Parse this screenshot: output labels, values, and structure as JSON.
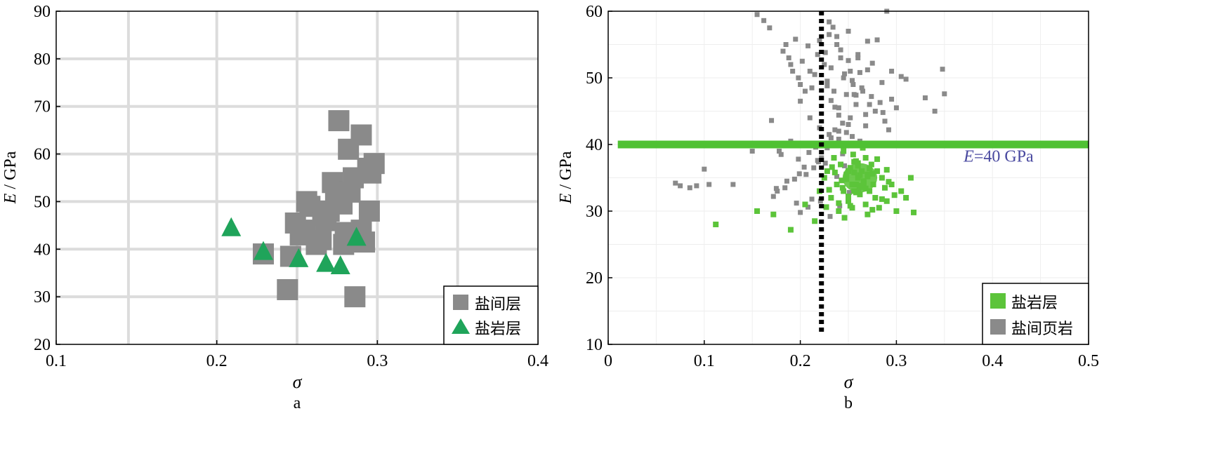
{
  "colors": {
    "gray_marker": "#8a8a8a",
    "green_triangle": "#1fa45a",
    "green_square": "#5cc43a",
    "green_line": "#4fc133",
    "gridline_a": "#dcdcdc",
    "gridline_b": "#eeeeee",
    "annotation": "#4a4aa0",
    "axis": "#000000"
  },
  "chart_data": [
    {
      "type": "scatter",
      "panel_label": "a",
      "xlabel": "σ",
      "ylabel_italic": "E",
      "ylabel_rest": " / GPa",
      "xlim": [
        0.1,
        0.4
      ],
      "ylim": [
        20,
        90
      ],
      "xticks": [
        0.1,
        0.2,
        0.3,
        0.4
      ],
      "xtick_labels": [
        "0.1",
        "0.2",
        "0.3",
        "0.4"
      ],
      "yticks": [
        20,
        30,
        40,
        50,
        60,
        70,
        80,
        90
      ],
      "ytick_labels": [
        "20",
        "30",
        "40",
        "50",
        "60",
        "70",
        "80",
        "90"
      ],
      "grid_x": [
        0.145,
        0.2,
        0.25,
        0.3,
        0.35
      ],
      "grid": true,
      "legend_position": "bottom-right",
      "series": [
        {
          "name": "盐间层",
          "marker": "square",
          "color": "#8a8a8a",
          "x": [
            0.229,
            0.244,
            0.246,
            0.249,
            0.252,
            0.255,
            0.258,
            0.262,
            0.265,
            0.268,
            0.27,
            0.272,
            0.274,
            0.276,
            0.278,
            0.28,
            0.282,
            0.285,
            0.288,
            0.29,
            0.292,
            0.294,
            0.295,
            0.296,
            0.298,
            0.286,
            0.283,
            0.275,
            0.266,
            0.256,
            0.29,
            0.279
          ],
          "y": [
            39,
            31.5,
            38.5,
            45.5,
            43,
            44,
            49,
            41,
            42,
            46,
            48,
            54,
            52,
            67,
            49.5,
            43.5,
            61,
            55,
            42,
            64,
            41.5,
            57,
            48,
            56,
            58,
            30,
            52,
            50,
            47,
            50,
            44,
            41
          ]
        },
        {
          "name": "盐岩层",
          "marker": "triangle",
          "color": "#1fa45a",
          "x": [
            0.209,
            0.229,
            0.251,
            0.268,
            0.277,
            0.287
          ],
          "y": [
            44.5,
            39.5,
            38,
            37,
            36.5,
            42.5
          ]
        }
      ]
    },
    {
      "type": "scatter",
      "panel_label": "b",
      "xlabel": "σ",
      "ylabel_italic": "E",
      "ylabel_rest": " / GPa",
      "xlim": [
        0,
        0.5
      ],
      "ylim": [
        10,
        60
      ],
      "xticks": [
        0,
        0.1,
        0.2,
        0.3,
        0.4,
        0.5
      ],
      "xtick_labels": [
        "0",
        "0.1",
        "0.2",
        "0.3",
        "0.4",
        "0.5"
      ],
      "yticks": [
        10,
        20,
        30,
        40,
        50,
        60
      ],
      "ytick_labels": [
        "10",
        "20",
        "30",
        "40",
        "50",
        "60"
      ],
      "grid": true,
      "legend_position": "bottom-right",
      "annotations": {
        "hline_y": 40,
        "hline_x_start": 0.01,
        "hline_label_italic": "E",
        "hline_label_rest": "=40 GPa",
        "hline_label_x": 0.37,
        "hline_label_y": 37.4,
        "vline_x": 0.222,
        "vline_y_range": [
          11.5,
          60
        ]
      },
      "series": [
        {
          "name": "盐岩层",
          "marker": "square",
          "color": "#5cc43a",
          "x": [
            0.112,
            0.155,
            0.172,
            0.19,
            0.205,
            0.215,
            0.22,
            0.225,
            0.228,
            0.232,
            0.235,
            0.238,
            0.24,
            0.242,
            0.244,
            0.246,
            0.248,
            0.25,
            0.252,
            0.254,
            0.256,
            0.258,
            0.26,
            0.262,
            0.264,
            0.266,
            0.268,
            0.27,
            0.272,
            0.274,
            0.276,
            0.278,
            0.28,
            0.282,
            0.285,
            0.288,
            0.29,
            0.295,
            0.3,
            0.305,
            0.31,
            0.315,
            0.318,
            0.245,
            0.255,
            0.265,
            0.25,
            0.26,
            0.27,
            0.262,
            0.258,
            0.268,
            0.252,
            0.275,
            0.24,
            0.236,
            0.23,
            0.28,
            0.285,
            0.29,
            0.248,
            0.256,
            0.266,
            0.26,
            0.254,
            0.27,
            0.264,
            0.275,
            0.243,
            0.233,
            0.227,
            0.292,
            0.298,
            0.245,
            0.258,
            0.272,
            0.262,
            0.268,
            0.25,
            0.256
          ],
          "y": [
            28,
            30,
            29.5,
            27.2,
            31,
            28.5,
            33,
            35,
            36,
            32,
            38,
            34,
            30,
            37,
            33.5,
            29,
            35.5,
            31.5,
            36.5,
            34,
            33,
            37.5,
            35,
            32.5,
            36,
            34.5,
            31,
            35.5,
            33,
            37,
            34,
            32,
            36,
            30.5,
            35,
            33.5,
            31.5,
            34,
            30,
            33,
            32,
            35,
            29.8,
            39,
            38.5,
            39.5,
            36,
            36.8,
            35.2,
            33.8,
            32.8,
            38,
            30.8,
            30.2,
            31.2,
            35.8,
            33.2,
            37.8,
            31.8,
            36.2,
            34.8,
            35.8,
            34.2,
            37.2,
            30.5,
            29.5,
            33.6,
            35.6,
            34.6,
            36.6,
            30.6,
            34.4,
            32.4,
            33,
            34,
            36.4,
            35.4,
            33.4,
            32.2,
            37.4
          ],
          "cluster": {
            "center_x": 0.262,
            "center_y": 35,
            "radius_x": 0.018,
            "radius_y": 2.2
          }
        },
        {
          "name": "盐间页岩",
          "marker": "square",
          "color": "#8a8a8a",
          "x": [
            0.07,
            0.075,
            0.085,
            0.092,
            0.1,
            0.105,
            0.13,
            0.15,
            0.155,
            0.162,
            0.168,
            0.17,
            0.175,
            0.178,
            0.182,
            0.185,
            0.188,
            0.19,
            0.192,
            0.195,
            0.198,
            0.2,
            0.202,
            0.205,
            0.208,
            0.21,
            0.212,
            0.215,
            0.218,
            0.22,
            0.222,
            0.225,
            0.228,
            0.23,
            0.232,
            0.235,
            0.238,
            0.24,
            0.242,
            0.245,
            0.248,
            0.25,
            0.252,
            0.255,
            0.258,
            0.26,
            0.262,
            0.265,
            0.268,
            0.27,
            0.275,
            0.28,
            0.285,
            0.29,
            0.295,
            0.3,
            0.31,
            0.33,
            0.34,
            0.348,
            0.35,
            0.305,
            0.295,
            0.27,
            0.26,
            0.25,
            0.24,
            0.23,
            0.22,
            0.21,
            0.2,
            0.19,
            0.18,
            0.232,
            0.236,
            0.24,
            0.244,
            0.248,
            0.228,
            0.222,
            0.218,
            0.214,
            0.206,
            0.198,
            0.186,
            0.176,
            0.172,
            0.252,
            0.256,
            0.264,
            0.272,
            0.278,
            0.283,
            0.288,
            0.246,
            0.238,
            0.226,
            0.216,
            0.204,
            0.194,
            0.184,
            0.234,
            0.244,
            0.254,
            0.262,
            0.268,
            0.274,
            0.286,
            0.292,
            0.212,
            0.208,
            0.2,
            0.196,
            0.24,
            0.236,
            0.232,
            0.228,
            0.246,
            0.25,
            0.242,
            0.238,
            0.234,
            0.23,
            0.226,
            0.254,
            0.258,
            0.221,
            0.231,
            0.241,
            0.251,
            0.261,
            0.219,
            0.209,
            0.199
          ],
          "y": [
            34.2,
            33.8,
            33.5,
            33.8,
            36.3,
            34,
            34,
            39,
            59.5,
            58.6,
            57.5,
            43.6,
            33.4,
            39,
            54,
            55,
            53,
            52,
            51,
            55.8,
            50,
            49,
            52.5,
            48,
            54.8,
            51,
            48.5,
            50.5,
            53.5,
            55.6,
            47,
            52,
            49.5,
            56.5,
            51.5,
            48,
            55,
            45.5,
            53,
            50,
            47.5,
            57,
            51,
            49,
            46,
            53.5,
            50.8,
            48,
            44.5,
            51.2,
            52.2,
            55.7,
            49.3,
            60,
            46.8,
            45.5,
            49.8,
            47,
            45,
            51.3,
            47.6,
            50.2,
            51,
            55.5,
            53,
            43,
            42,
            41.5,
            42.5,
            44,
            46.5,
            40.5,
            38.5,
            41,
            42.2,
            40.8,
            43.2,
            41.8,
            39.5,
            38,
            37.6,
            36.5,
            35.5,
            37.8,
            34.5,
            33,
            32.2,
            44,
            47.5,
            48.5,
            46,
            45,
            46.3,
            43.5,
            36.8,
            35.2,
            37.2,
            39.6,
            36.6,
            34.8,
            33.5,
            39.8,
            38.6,
            41.2,
            40.5,
            42.8,
            47.2,
            44.8,
            42.2,
            31.8,
            30.6,
            29.8,
            31.2,
            44.4,
            45.6,
            46.6,
            48.8,
            50.6,
            52.6,
            54.2,
            56.2,
            57.6,
            58.4,
            53.8,
            49.6,
            47.4,
            31.5,
            29.2,
            30.8,
            32.8,
            33.2,
            37.4,
            38.8,
            35.6
          ]
        }
      ]
    }
  ]
}
